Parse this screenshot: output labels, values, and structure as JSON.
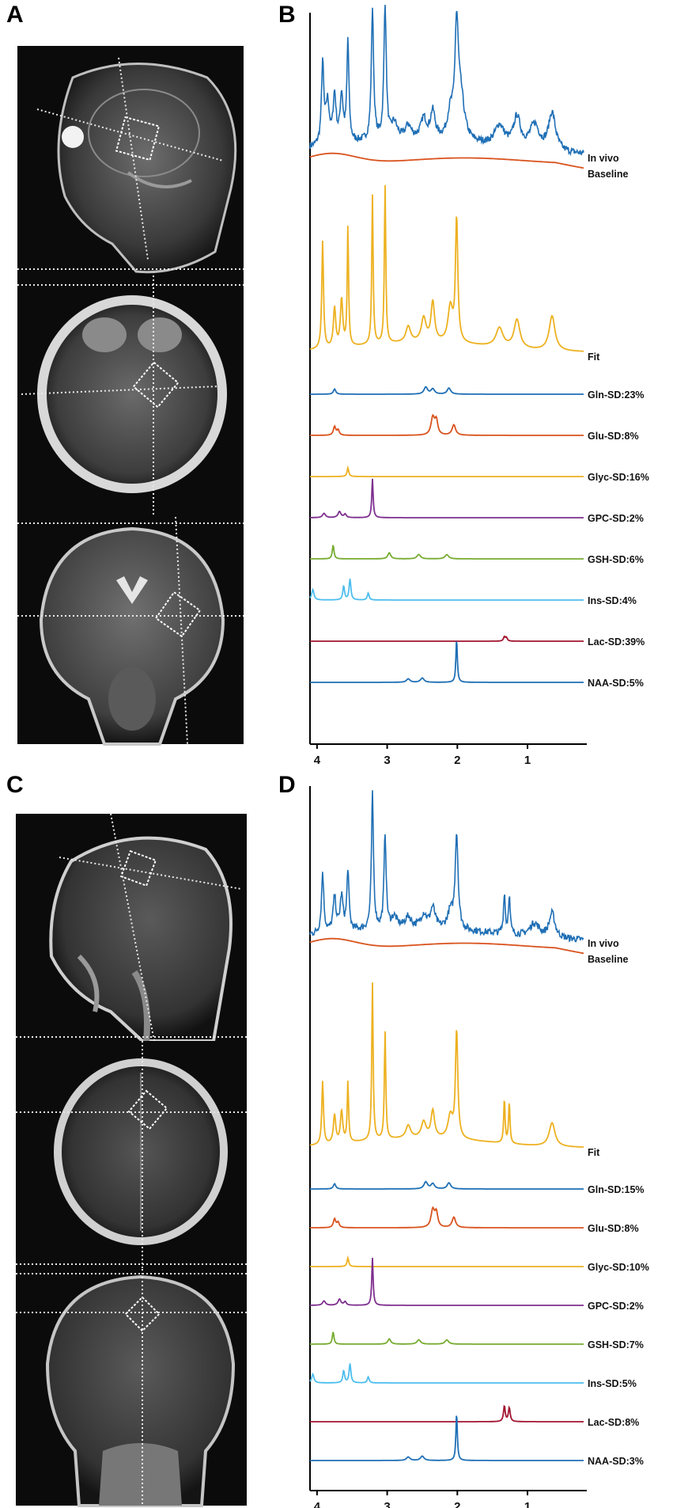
{
  "figure": {
    "panel_letters": [
      "A",
      "B",
      "C",
      "D"
    ]
  },
  "mri_panels": [
    {
      "panel": "A",
      "views": [
        "sagittal",
        "axial",
        "coronal"
      ],
      "voxel_marker": "white dotted voxel box with dotted crosshair lines"
    },
    {
      "panel": "C",
      "views": [
        "sagittal",
        "axial",
        "coronal"
      ],
      "voxel_marker": "white dotted voxel box with dotted crosshair lines"
    }
  ],
  "colors": {
    "in_vivo": "#1f6fb5",
    "baseline": "#d9531e",
    "fit": "#edb120",
    "Gln": "#1f6fb5",
    "Glu": "#d9531e",
    "Glyc": "#edb120",
    "GPC": "#7e2f8e",
    "GSH": "#77ac30",
    "Ins": "#4dbeee",
    "Lac": "#a2142f",
    "NAA": "#1f6fb5"
  },
  "chart_data": [
    {
      "panel": "B",
      "type": "line",
      "x_axis": {
        "reversed": true,
        "ticks": [
          4,
          3,
          2,
          1
        ],
        "xlim": [
          4.1,
          0.2
        ]
      },
      "grid": false,
      "series": [
        {
          "name": "In vivo",
          "label": "In vivo",
          "color": "#1f6fb5",
          "noisy": true,
          "peaks": [
            [
              3.92,
              0.6,
              0.02
            ],
            [
              3.85,
              0.3,
              0.03
            ],
            [
              3.75,
              0.35,
              0.025
            ],
            [
              3.65,
              0.35,
              0.025
            ],
            [
              3.56,
              0.75,
              0.018
            ],
            [
              3.21,
              0.98,
              0.02
            ],
            [
              3.03,
              1.0,
              0.02
            ],
            [
              2.9,
              0.12,
              0.05
            ],
            [
              2.7,
              0.1,
              0.05
            ],
            [
              2.48,
              0.15,
              0.05
            ],
            [
              2.35,
              0.2,
              0.04
            ],
            [
              2.1,
              0.18,
              0.05
            ],
            [
              2.01,
              0.78,
              0.03
            ],
            [
              1.95,
              0.3,
              0.06
            ],
            [
              1.4,
              0.15,
              0.08
            ],
            [
              1.15,
              0.22,
              0.06
            ],
            [
              0.9,
              0.18,
              0.08
            ],
            [
              0.65,
              0.28,
              0.06
            ]
          ],
          "base_level": 0.12
        },
        {
          "name": "Baseline",
          "label": "Baseline",
          "color": "#d9531e",
          "smooth": true
        },
        {
          "name": "Fit",
          "label": "Fit",
          "color": "#edb120",
          "peaks": [
            [
              3.92,
              0.68,
              0.015
            ],
            [
              3.75,
              0.25,
              0.02
            ],
            [
              3.65,
              0.3,
              0.02
            ],
            [
              3.56,
              0.75,
              0.012
            ],
            [
              3.21,
              0.95,
              0.012
            ],
            [
              3.03,
              1.0,
              0.012
            ],
            [
              2.7,
              0.1,
              0.04
            ],
            [
              2.48,
              0.15,
              0.04
            ],
            [
              2.35,
              0.25,
              0.03
            ],
            [
              2.1,
              0.22,
              0.04
            ],
            [
              2.01,
              0.78,
              0.02
            ],
            [
              1.4,
              0.12,
              0.06
            ],
            [
              1.15,
              0.18,
              0.05
            ],
            [
              0.65,
              0.22,
              0.05
            ]
          ]
        },
        {
          "name": "Gln",
          "label": "Gln-SD:23%",
          "color": "#1f6fb5",
          "peaks": [
            [
              3.75,
              0.6,
              0.02
            ],
            [
              2.45,
              0.8,
              0.03
            ],
            [
              2.35,
              0.6,
              0.03
            ],
            [
              2.12,
              0.7,
              0.03
            ]
          ]
        },
        {
          "name": "Glu",
          "label": "Glu-SD:8%",
          "color": "#d9531e",
          "peaks": [
            [
              3.75,
              1.0,
              0.02
            ],
            [
              3.7,
              0.6,
              0.02
            ],
            [
              2.35,
              2.0,
              0.03
            ],
            [
              2.3,
              1.6,
              0.025
            ],
            [
              2.05,
              1.2,
              0.03
            ]
          ]
        },
        {
          "name": "Glyc",
          "label": "Glyc-SD:16%",
          "color": "#edb120",
          "peaks": [
            [
              3.56,
              1.0,
              0.015
            ]
          ]
        },
        {
          "name": "GPC",
          "label": "GPC-SD:2%",
          "color": "#7e2f8e",
          "peaks": [
            [
              3.9,
              0.5,
              0.025
            ],
            [
              3.68,
              0.7,
              0.025
            ],
            [
              3.6,
              0.4,
              0.02
            ],
            [
              3.21,
              4.5,
              0.012
            ]
          ]
        },
        {
          "name": "GSH",
          "label": "GSH-SD:6%",
          "color": "#77ac30",
          "peaks": [
            [
              3.77,
              1.6,
              0.014
            ],
            [
              2.97,
              0.7,
              0.025
            ],
            [
              2.55,
              0.5,
              0.03
            ],
            [
              2.15,
              0.5,
              0.03
            ]
          ]
        },
        {
          "name": "Ins",
          "label": "Ins-SD:4%",
          "color": "#4dbeee",
          "peaks": [
            [
              4.06,
              1.2,
              0.02
            ],
            [
              3.62,
              1.6,
              0.015
            ],
            [
              3.53,
              2.4,
              0.015
            ],
            [
              3.27,
              0.8,
              0.015
            ]
          ]
        },
        {
          "name": "Lac",
          "label": "Lac-SD:39%",
          "color": "#a2142f",
          "peaks": [
            [
              1.33,
              0.5,
              0.015
            ],
            [
              1.3,
              0.4,
              0.015
            ]
          ]
        },
        {
          "name": "NAA",
          "label": "NAA-SD:5%",
          "color": "#1f6fb5",
          "peaks": [
            [
              2.01,
              5.0,
              0.012
            ],
            [
              2.7,
              0.4,
              0.03
            ],
            [
              2.5,
              0.5,
              0.03
            ]
          ]
        }
      ]
    },
    {
      "panel": "D",
      "type": "line",
      "x_axis": {
        "reversed": true,
        "ticks": [
          4,
          3,
          2,
          1
        ],
        "xlim": [
          4.1,
          0.2
        ]
      },
      "grid": false,
      "series": [
        {
          "name": "In vivo",
          "label": "In vivo",
          "color": "#1f6fb5",
          "noisy": true,
          "peaks": [
            [
              3.92,
              0.45,
              0.02
            ],
            [
              3.75,
              0.25,
              0.025
            ],
            [
              3.65,
              0.25,
              0.025
            ],
            [
              3.56,
              0.45,
              0.018
            ],
            [
              3.21,
              1.0,
              0.018
            ],
            [
              3.03,
              0.7,
              0.018
            ],
            [
              2.9,
              0.08,
              0.05
            ],
            [
              2.7,
              0.08,
              0.05
            ],
            [
              2.48,
              0.1,
              0.05
            ],
            [
              2.35,
              0.15,
              0.04
            ],
            [
              2.1,
              0.12,
              0.05
            ],
            [
              2.01,
              0.7,
              0.025
            ],
            [
              1.33,
              0.3,
              0.015
            ],
            [
              1.26,
              0.28,
              0.015
            ],
            [
              0.9,
              0.1,
              0.08
            ],
            [
              0.65,
              0.18,
              0.05
            ]
          ],
          "base_level": 0.1
        },
        {
          "name": "Baseline",
          "label": "Baseline",
          "color": "#d9531e",
          "smooth": true
        },
        {
          "name": "Fit",
          "label": "Fit",
          "color": "#edb120",
          "peaks": [
            [
              3.92,
              0.4,
              0.015
            ],
            [
              3.75,
              0.18,
              0.02
            ],
            [
              3.65,
              0.2,
              0.02
            ],
            [
              3.56,
              0.38,
              0.012
            ],
            [
              3.21,
              1.0,
              0.012
            ],
            [
              3.03,
              0.68,
              0.012
            ],
            [
              2.7,
              0.08,
              0.04
            ],
            [
              2.48,
              0.1,
              0.04
            ],
            [
              2.35,
              0.17,
              0.03
            ],
            [
              2.1,
              0.14,
              0.04
            ],
            [
              2.01,
              0.68,
              0.02
            ],
            [
              1.33,
              0.28,
              0.012
            ],
            [
              1.26,
              0.26,
              0.012
            ],
            [
              0.65,
              0.15,
              0.05
            ]
          ]
        },
        {
          "name": "Gln",
          "label": "Gln-SD:15%",
          "color": "#1f6fb5",
          "peaks": [
            [
              3.75,
              0.6,
              0.02
            ],
            [
              2.45,
              0.8,
              0.03
            ],
            [
              2.35,
              0.6,
              0.03
            ],
            [
              2.12,
              0.7,
              0.03
            ]
          ]
        },
        {
          "name": "Glu",
          "label": "Glu-SD:8%",
          "color": "#d9531e",
          "peaks": [
            [
              3.75,
              1.0,
              0.02
            ],
            [
              3.7,
              0.6,
              0.02
            ],
            [
              2.35,
              2.0,
              0.03
            ],
            [
              2.3,
              1.6,
              0.025
            ],
            [
              2.05,
              1.2,
              0.03
            ]
          ]
        },
        {
          "name": "Glyc",
          "label": "Glyc-SD:10%",
          "color": "#edb120",
          "peaks": [
            [
              3.56,
              1.0,
              0.015
            ]
          ]
        },
        {
          "name": "GPC",
          "label": "GPC-SD:2%",
          "color": "#7e2f8e",
          "peaks": [
            [
              3.9,
              0.5,
              0.025
            ],
            [
              3.68,
              0.7,
              0.025
            ],
            [
              3.6,
              0.4,
              0.02
            ],
            [
              3.21,
              5.5,
              0.012
            ]
          ]
        },
        {
          "name": "GSH",
          "label": "GSH-SD:7%",
          "color": "#77ac30",
          "peaks": [
            [
              3.77,
              1.4,
              0.014
            ],
            [
              2.97,
              0.6,
              0.025
            ],
            [
              2.55,
              0.5,
              0.03
            ],
            [
              2.15,
              0.5,
              0.03
            ]
          ]
        },
        {
          "name": "Ins",
          "label": "Ins-SD:5%",
          "color": "#4dbeee",
          "peaks": [
            [
              4.06,
              1.0,
              0.02
            ],
            [
              3.62,
              1.4,
              0.015
            ],
            [
              3.53,
              2.2,
              0.015
            ],
            [
              3.27,
              0.7,
              0.015
            ]
          ]
        },
        {
          "name": "Lac",
          "label": "Lac-SD:8%",
          "color": "#a2142f",
          "peaks": [
            [
              1.33,
              1.8,
              0.015
            ],
            [
              1.26,
              1.6,
              0.015
            ]
          ]
        },
        {
          "name": "NAA",
          "label": "NAA-SD:3%",
          "color": "#1f6fb5",
          "peaks": [
            [
              2.01,
              5.5,
              0.012
            ],
            [
              2.7,
              0.4,
              0.03
            ],
            [
              2.5,
              0.5,
              0.03
            ]
          ]
        }
      ]
    }
  ]
}
